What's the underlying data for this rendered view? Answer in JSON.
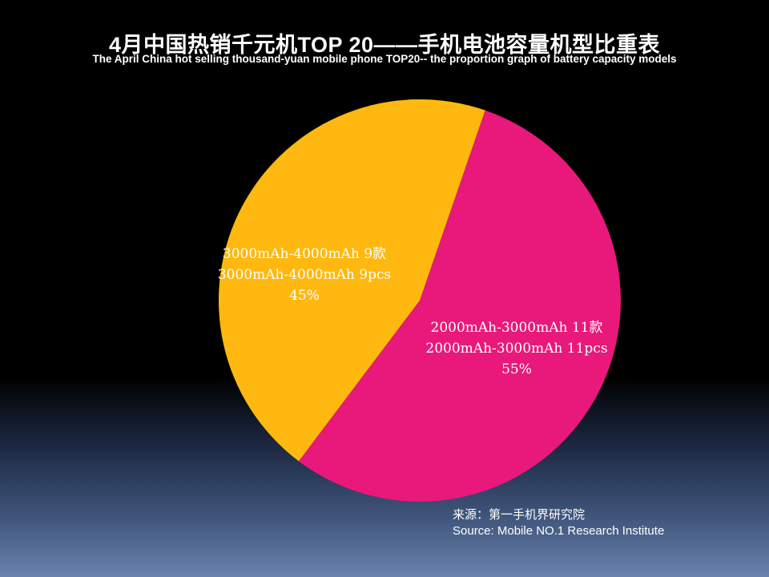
{
  "chart_data": {
    "type": "pie",
    "title": "4月中国热销千元机TOP 20——手机电池容量机型比重表",
    "subtitle": "The April China hot selling thousand-yuan mobile phone TOP20-- the proportion graph of battery capacity models",
    "slices": [
      {
        "label_cn": "3000mAh-4000mAh 9款",
        "label_en": "3000mAh-4000mAh 9pcs",
        "count": 9,
        "percent": 45,
        "percent_label": "45%",
        "color": "#FFB80F"
      },
      {
        "label_cn": "2000mAh-3000mAh 11款",
        "label_en": "2000mAh-3000mAh 11pcs",
        "count": 11,
        "percent": 55,
        "percent_label": "55%",
        "color": "#E8197A"
      }
    ]
  },
  "source": {
    "cn": "来源：第一手机界研究院",
    "en": "Source: Mobile NO.1 Research Institute"
  }
}
